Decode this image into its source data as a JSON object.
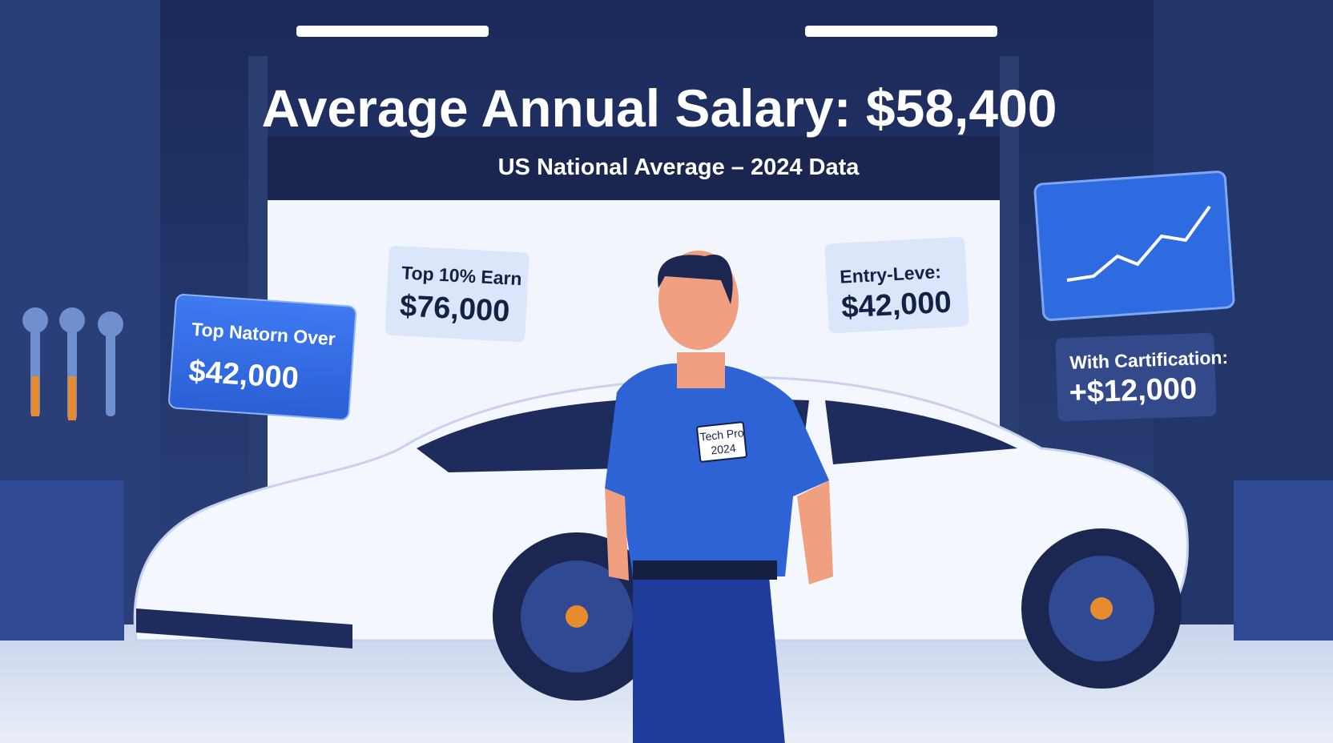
{
  "header": {
    "title": "Average Annual Salary: $58,400",
    "subtitle": "US National Average – 2024 Data"
  },
  "cards": [
    {
      "label": "Top Natorn Over",
      "value": "$42,000"
    },
    {
      "label": "Top 10% Earn",
      "value": "$76,000"
    },
    {
      "label": "Entry-Leve:",
      "value": "$42,000"
    },
    {
      "label": "With Cartification:",
      "value": "+$12,000"
    }
  ],
  "badge": {
    "line1": "Tech Pro",
    "line2": "2024"
  }
}
